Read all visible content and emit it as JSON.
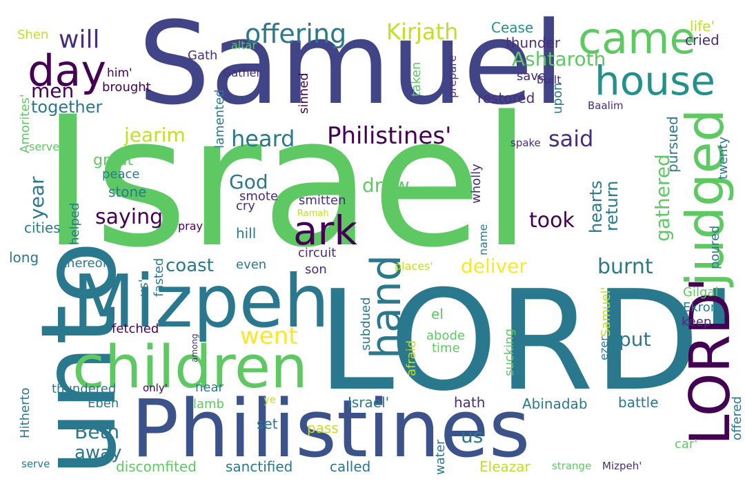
{
  "words": [
    {
      "text": "Israel",
      "color": "#5ec962"
    },
    {
      "text": "Samuel",
      "color": "#414487"
    },
    {
      "text": "LORD'",
      "color": "#2a788e"
    },
    {
      "text": "Philistines",
      "color": "#3b528b"
    },
    {
      "text": "unto",
      "color": "#2a788e"
    },
    {
      "text": "Mizpeh",
      "color": "#2a788e"
    },
    {
      "text": "children",
      "color": "#5ec962"
    },
    {
      "text": "LORD'",
      "color": "#440154"
    },
    {
      "text": "judged",
      "color": "#5ec962"
    },
    {
      "text": "came",
      "color": "#5ec962"
    },
    {
      "text": "house",
      "color": "#21918c"
    },
    {
      "text": "day",
      "color": "#440154"
    },
    {
      "text": "ark",
      "color": "#440154"
    },
    {
      "text": "hand",
      "color": "#2a788e"
    },
    {
      "text": "offering",
      "color": "#2a788e"
    },
    {
      "text": "Philistines'",
      "color": "#440154"
    },
    {
      "text": "Kirjath",
      "color": "#c2df23"
    },
    {
      "text": "will",
      "color": "#472d7b"
    },
    {
      "text": "Ashtaroth",
      "color": "#5ec962"
    },
    {
      "text": "heard",
      "color": "#2a788e"
    },
    {
      "text": "said",
      "color": "#472d7b"
    },
    {
      "text": "jearim",
      "color": "#c2df23"
    },
    {
      "text": "men",
      "color": "#440154"
    },
    {
      "text": "together",
      "color": "#2a788e"
    },
    {
      "text": "year",
      "color": "#2a788e"
    },
    {
      "text": "God",
      "color": "#2a788e"
    },
    {
      "text": "drew",
      "color": "#5ec962"
    },
    {
      "text": "saying",
      "color": "#440154"
    },
    {
      "text": "took",
      "color": "#440154"
    },
    {
      "text": "hearts",
      "color": "#2a788e"
    },
    {
      "text": "return",
      "color": "#2a788e"
    },
    {
      "text": "gathered",
      "color": "#5ec962"
    },
    {
      "text": "pursued",
      "color": "#2a788e"
    },
    {
      "text": "twenty",
      "color": "#2a788e"
    },
    {
      "text": "went",
      "color": "#fde725"
    },
    {
      "text": "coast",
      "color": "#2a788e"
    },
    {
      "text": "deliver",
      "color": "#fde725"
    },
    {
      "text": "burnt",
      "color": "#2a788e"
    },
    {
      "text": "Beth",
      "color": "#2a788e"
    },
    {
      "text": "away",
      "color": "#2a788e"
    },
    {
      "text": "put",
      "color": "#2a788e"
    },
    {
      "text": "us",
      "color": "#2a788e"
    },
    {
      "text": "Cease",
      "color": "#21918c"
    },
    {
      "text": "thunder",
      "color": "#472d7b"
    },
    {
      "text": "life'",
      "color": "#c2df23"
    },
    {
      "text": "cried",
      "color": "#472d7b"
    },
    {
      "text": "Shen",
      "color": "#c2df23"
    },
    {
      "text": "altar",
      "color": "#5ec962"
    },
    {
      "text": "Gath",
      "color": "#472d7b"
    },
    {
      "text": "him'",
      "color": "#440154"
    },
    {
      "text": "Gather",
      "color": "#472d7b"
    },
    {
      "text": "brought",
      "color": "#440154"
    },
    {
      "text": "taken",
      "color": "#5ec962"
    },
    {
      "text": "sinned",
      "color": "#440154"
    },
    {
      "text": "lamented",
      "color": "#2a788e"
    },
    {
      "text": "prepare",
      "color": "#472d7b"
    },
    {
      "text": "save",
      "color": "#472d7b"
    },
    {
      "text": "built",
      "color": "#472d7b"
    },
    {
      "text": "restored",
      "color": "#472d7b"
    },
    {
      "text": "upon",
      "color": "#2a788e"
    },
    {
      "text": "Baalim",
      "color": "#472d7b"
    },
    {
      "text": "Amorites'",
      "color": "#5ec962"
    },
    {
      "text": "served",
      "color": "#5ec962"
    },
    {
      "text": "great",
      "color": "#5ec962"
    },
    {
      "text": "spake",
      "color": "#472d7b"
    },
    {
      "text": "wholly",
      "color": "#472d7b"
    },
    {
      "text": "peace",
      "color": "#2a788e"
    },
    {
      "text": "stone",
      "color": "#2a788e"
    },
    {
      "text": "helped",
      "color": "#2a788e"
    },
    {
      "text": "smote",
      "color": "#472d7b"
    },
    {
      "text": "smitten",
      "color": "#472d7b"
    },
    {
      "text": "cry",
      "color": "#472d7b"
    },
    {
      "text": "Ramah",
      "color": "#c2df23"
    },
    {
      "text": "cities",
      "color": "#2a788e"
    },
    {
      "text": "pray",
      "color": "#440154"
    },
    {
      "text": "hill",
      "color": "#2a788e"
    },
    {
      "text": "name",
      "color": "#2a788e"
    },
    {
      "text": "poured",
      "color": "#2a788e"
    },
    {
      "text": "long",
      "color": "#2a788e"
    },
    {
      "text": "circuit",
      "color": "#472d7b"
    },
    {
      "text": "thereof",
      "color": "#2a788e"
    },
    {
      "text": "even",
      "color": "#2a788e"
    },
    {
      "text": "son",
      "color": "#472d7b"
    },
    {
      "text": "places'",
      "color": "#c2df23"
    },
    {
      "text": "us'",
      "color": "#2a788e"
    },
    {
      "text": "fasted",
      "color": "#2a788e"
    },
    {
      "text": "Samuel'",
      "color": "#c2df23"
    },
    {
      "text": "Gilgal",
      "color": "#5ec962"
    },
    {
      "text": "Ekron",
      "color": "#2a788e"
    },
    {
      "text": "keep",
      "color": "#472d7b"
    },
    {
      "text": "el",
      "color": "#5ec962"
    },
    {
      "text": "fetched",
      "color": "#440154"
    },
    {
      "text": "subdued",
      "color": "#2a788e"
    },
    {
      "text": "sucking",
      "color": "#5ec962"
    },
    {
      "text": "abode",
      "color": "#5ec962"
    },
    {
      "text": "time",
      "color": "#5ec962"
    },
    {
      "text": "afraid",
      "color": "#c2df23"
    },
    {
      "text": "ezer",
      "color": "#2a788e"
    },
    {
      "text": "among",
      "color": "#472d7b"
    },
    {
      "text": "Hitherto",
      "color": "#2a788e"
    },
    {
      "text": "thundered",
      "color": "#2a788e"
    },
    {
      "text": "only'",
      "color": "#440154"
    },
    {
      "text": "near",
      "color": "#2a788e"
    },
    {
      "text": "ye",
      "color": "#c2df23"
    },
    {
      "text": "Israel'",
      "color": "#2a788e"
    },
    {
      "text": "hath",
      "color": "#472d7b"
    },
    {
      "text": "Abinadab",
      "color": "#2a788e"
    },
    {
      "text": "battle",
      "color": "#2a788e"
    },
    {
      "text": "offered",
      "color": "#2a788e"
    },
    {
      "text": "Eben",
      "color": "#2a788e"
    },
    {
      "text": "lamb",
      "color": "#5ec962"
    },
    {
      "text": "set",
      "color": "#2a788e"
    },
    {
      "text": "pass",
      "color": "#c2df23"
    },
    {
      "text": "water",
      "color": "#2a788e"
    },
    {
      "text": "car'",
      "color": "#5ec962"
    },
    {
      "text": "discomfited",
      "color": "#5ec962"
    },
    {
      "text": "sanctified",
      "color": "#2a788e"
    },
    {
      "text": "called",
      "color": "#2a788e"
    },
    {
      "text": "Eleazar",
      "color": "#c2df23"
    },
    {
      "text": "strange",
      "color": "#5ec962"
    },
    {
      "text": "Mizpeh'",
      "color": "#472d7b"
    },
    {
      "text": "serve",
      "color": "#2a788e"
    }
  ]
}
